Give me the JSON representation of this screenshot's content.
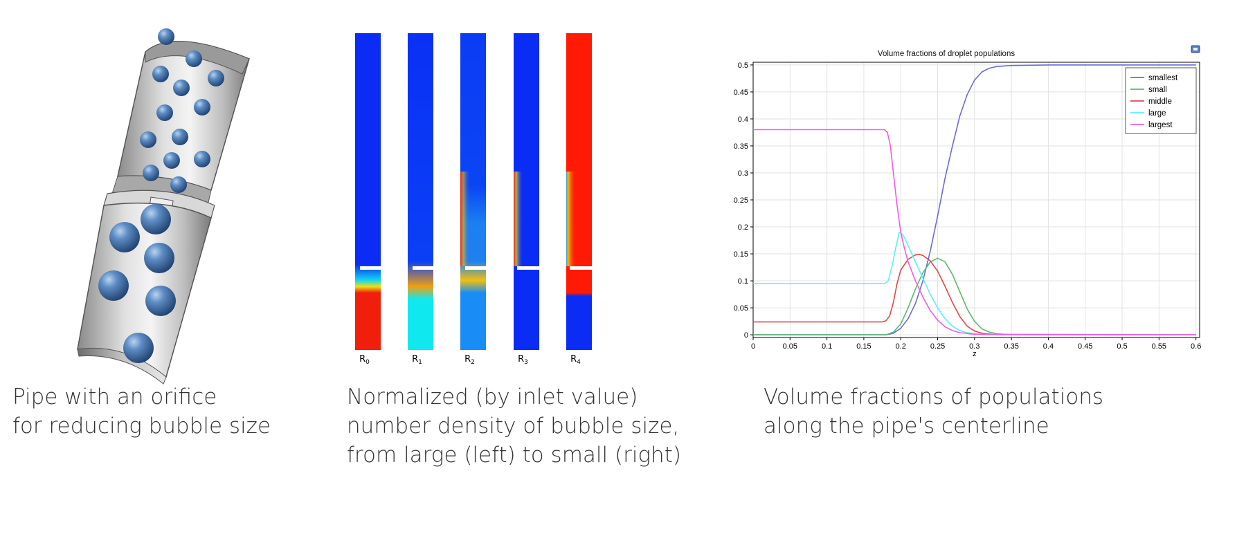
{
  "captions": {
    "pipe": [
      "Pipe with an orifice",
      "for reducing bubble size"
    ],
    "density": [
      "Normalized (by inlet value)",
      "number density of bubble size,",
      "from large (left) to small (right)"
    ],
    "chart": [
      "Volume fractions of populations",
      "along the pipe's centerline"
    ]
  },
  "density_columns": [
    {
      "label": "R",
      "sub": "0",
      "top_color": "#0a2cf5",
      "bottom_color": "#f01e0a"
    },
    {
      "label": "R",
      "sub": "1",
      "top_color": "#0a30f5",
      "bottom_color": "#10e8f0"
    },
    {
      "label": "R",
      "sub": "2",
      "top_color": "#0b3cf5",
      "bottom_color": "#1a8cf5"
    },
    {
      "label": "R",
      "sub": "3",
      "top_color": "#0a2cf5",
      "bottom_color": "#0a2cf5"
    },
    {
      "label": "R",
      "sub": "4",
      "top_color": "#ff1a05",
      "bottom_color": "#0a2cf5"
    }
  ],
  "colors": {
    "smallest": "#6a6adc",
    "small": "#5cb86c",
    "middle": "#e04848",
    "large": "#5cf0f0",
    "largest": "#ee5ce8",
    "bubble": "#3f6fa6",
    "pipe": "#c6c6c6"
  },
  "chart_data": {
    "type": "line",
    "title": "Volume fractions of droplet populations",
    "xlabel": "z",
    "ylabel": "",
    "xlim": [
      0,
      0.605
    ],
    "ylim": [
      -0.005,
      0.505
    ],
    "xticks": [
      0,
      0.05,
      0.1,
      0.15,
      0.2,
      0.25,
      0.3,
      0.35,
      0.4,
      0.45,
      0.5,
      0.55,
      0.6
    ],
    "xtick_labels": [
      "0",
      "0.05",
      "0.1",
      "0.15",
      "0.2",
      "0.25",
      "0.3",
      "0.35",
      "0.4",
      "0.45",
      "0.5",
      "0.55",
      "0.6"
    ],
    "yticks": [
      0,
      0.05,
      0.1,
      0.15,
      0.2,
      0.25,
      0.3,
      0.35,
      0.4,
      0.45,
      0.5
    ],
    "ytick_labels": [
      "0",
      "0.05",
      "0.1",
      "0.15",
      "0.2",
      "0.25",
      "0.3",
      "0.35",
      "0.4",
      "0.45",
      "0.5"
    ],
    "grid": true,
    "legend_position": "top-right",
    "series": [
      {
        "name": "smallest",
        "color": "#6a6adc",
        "x": [
          0,
          0.18,
          0.19,
          0.2,
          0.21,
          0.22,
          0.23,
          0.24,
          0.25,
          0.26,
          0.27,
          0.28,
          0.29,
          0.3,
          0.31,
          0.32,
          0.33,
          0.35,
          0.4,
          0.6
        ],
        "y": [
          0,
          0,
          0.003,
          0.012,
          0.03,
          0.058,
          0.1,
          0.155,
          0.22,
          0.29,
          0.35,
          0.405,
          0.445,
          0.472,
          0.487,
          0.494,
          0.497,
          0.499,
          0.5,
          0.5
        ]
      },
      {
        "name": "small",
        "color": "#5cb86c",
        "x": [
          0,
          0.18,
          0.19,
          0.2,
          0.21,
          0.22,
          0.23,
          0.24,
          0.25,
          0.26,
          0.27,
          0.28,
          0.29,
          0.3,
          0.31,
          0.32,
          0.33,
          0.35,
          0.6
        ],
        "y": [
          0,
          0,
          0.005,
          0.02,
          0.05,
          0.085,
          0.115,
          0.135,
          0.142,
          0.135,
          0.112,
          0.08,
          0.048,
          0.025,
          0.011,
          0.005,
          0.002,
          0,
          0
        ]
      },
      {
        "name": "middle",
        "color": "#e04848",
        "x": [
          0,
          0.175,
          0.18,
          0.185,
          0.19,
          0.195,
          0.2,
          0.21,
          0.22,
          0.225,
          0.23,
          0.24,
          0.25,
          0.26,
          0.27,
          0.28,
          0.29,
          0.3,
          0.31,
          0.33,
          0.6
        ],
        "y": [
          0.024,
          0.024,
          0.026,
          0.035,
          0.06,
          0.095,
          0.12,
          0.14,
          0.148,
          0.149,
          0.147,
          0.137,
          0.118,
          0.09,
          0.06,
          0.034,
          0.016,
          0.007,
          0.003,
          0,
          0
        ]
      },
      {
        "name": "large",
        "color": "#5cf0f0",
        "x": [
          0,
          0.178,
          0.183,
          0.188,
          0.193,
          0.198,
          0.2,
          0.205,
          0.21,
          0.22,
          0.23,
          0.24,
          0.25,
          0.26,
          0.27,
          0.28,
          0.29,
          0.3,
          0.32,
          0.6
        ],
        "y": [
          0.095,
          0.095,
          0.1,
          0.125,
          0.16,
          0.19,
          0.19,
          0.18,
          0.165,
          0.135,
          0.105,
          0.075,
          0.05,
          0.03,
          0.016,
          0.008,
          0.004,
          0.002,
          0,
          0
        ]
      },
      {
        "name": "largest",
        "color": "#ee5ce8",
        "x": [
          0,
          0.178,
          0.182,
          0.186,
          0.19,
          0.195,
          0.2,
          0.205,
          0.21,
          0.22,
          0.23,
          0.24,
          0.25,
          0.26,
          0.27,
          0.28,
          0.3,
          0.6
        ],
        "y": [
          0.38,
          0.38,
          0.375,
          0.35,
          0.3,
          0.24,
          0.19,
          0.16,
          0.135,
          0.1,
          0.07,
          0.045,
          0.027,
          0.015,
          0.008,
          0.004,
          0.001,
          0
        ]
      }
    ]
  }
}
